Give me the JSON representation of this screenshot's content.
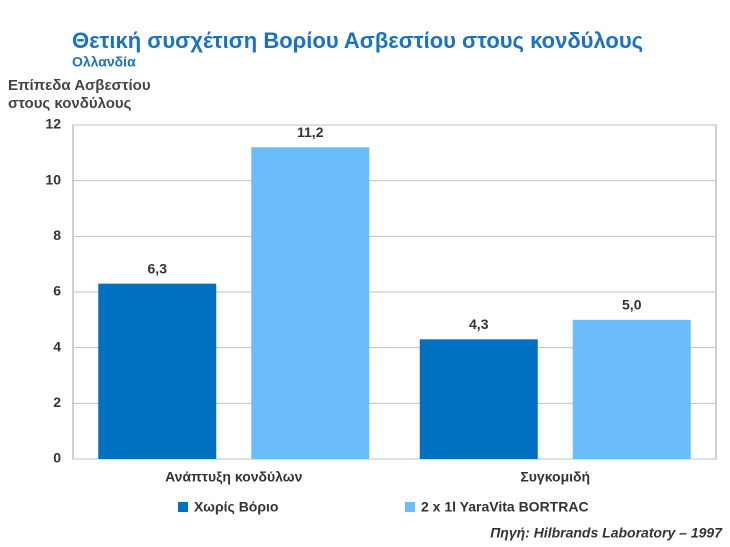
{
  "chart_data": {
    "type": "bar",
    "title": "Θετική συσχέτιση Βορίου Ασβεστίου στους κονδύλους",
    "subtitle": "Ολλανδία",
    "y_label": [
      "Επίπεδα Ασβεστίου",
      "στους κονδύλους"
    ],
    "categories": [
      "Ανάπτυξη κονδύλων",
      "Συγκομιδή"
    ],
    "series": [
      {
        "name": "Χωρίς Βόριο",
        "color": "#0070c0",
        "values": [
          6.3,
          4.3
        ],
        "value_labels": [
          "6,3",
          "4,3"
        ]
      },
      {
        "name": "2 x 1l YaraVita BORTRAC",
        "color": "#6bbdfa",
        "values": [
          11.2,
          5.0
        ],
        "value_labels": [
          "11,2",
          "5,0"
        ]
      }
    ],
    "ylim": [
      0,
      12
    ],
    "yticks": [
      0,
      2,
      4,
      6,
      8,
      10,
      12
    ],
    "grid": true,
    "source": "Πηγή: Hilbrands Laboratory – 1997"
  }
}
